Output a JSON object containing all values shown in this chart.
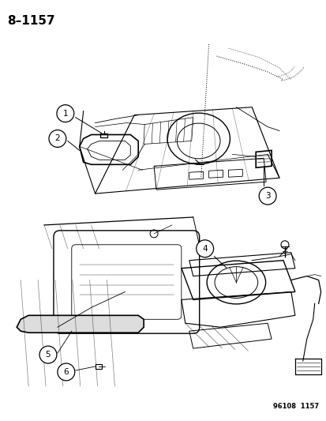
{
  "title": "8–1157",
  "footer": "96108  1157",
  "background_color": "#ffffff",
  "line_color": "#000000",
  "gray_color": "#888888",
  "light_gray": "#aaaaaa"
}
